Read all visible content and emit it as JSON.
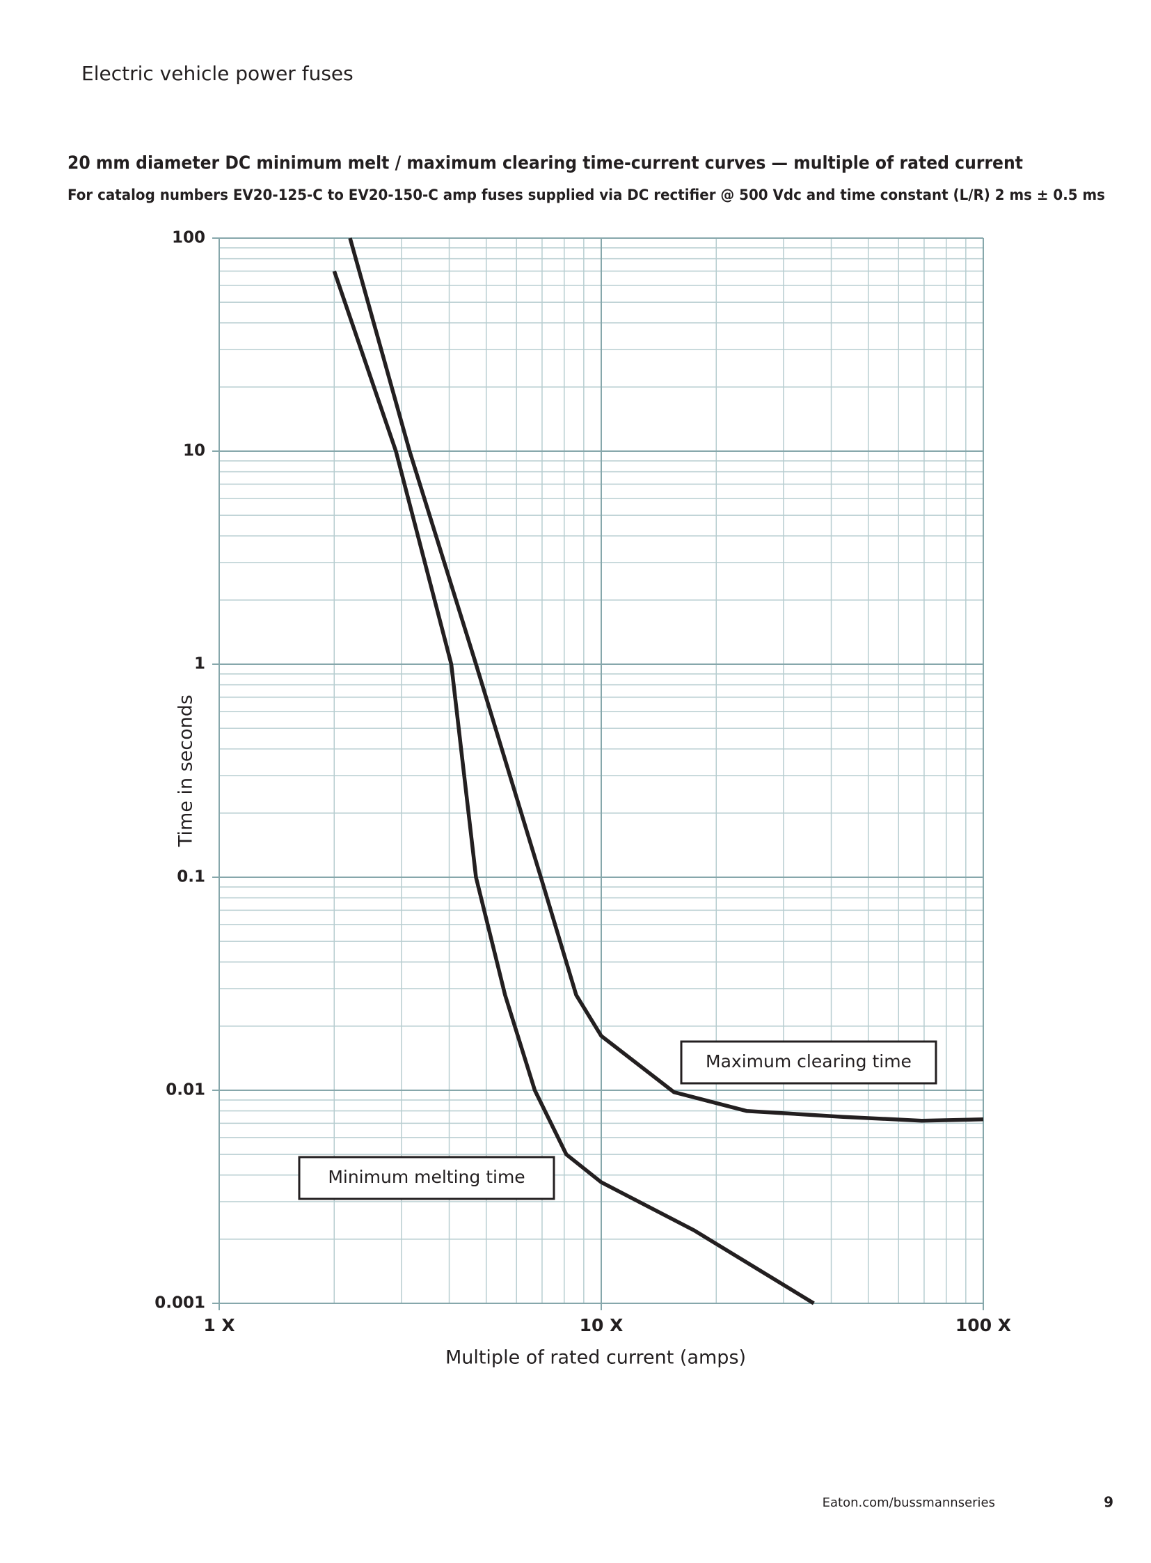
{
  "header": {
    "title": "Electric vehicle power fuses"
  },
  "chart_data": {
    "type": "line",
    "title": "20 mm diameter DC minimum melt / maximum clearing time-current curves — multiple of rated current",
    "subtitle": "For catalog numbers EV20-125-C to EV20-150-C amp fuses supplied via DC rectifier @ 500 Vdc and time constant (L/R) 2 ms ± 0.5 ms",
    "x_label": "Multiple of rated current (amps)",
    "y_label": "Time in seconds",
    "x_log": true,
    "y_log": true,
    "grid": true,
    "minor_grid": true,
    "xlim": [
      1,
      100
    ],
    "ylim": [
      0.001,
      100
    ],
    "xticks": [
      {
        "value": 1,
        "label": "1 X"
      },
      {
        "value": 10,
        "label": "10 X"
      },
      {
        "value": 100,
        "label": "100 X"
      }
    ],
    "yticks": [
      0.001,
      0.01,
      0.1,
      1,
      10,
      100
    ],
    "series": [
      {
        "name": "Minimum melting time",
        "color": "#231f20",
        "x": [
          2.0,
          2.9,
          4.05,
          4.7,
          5.6,
          6.7,
          8.1,
          10,
          17.5,
          36
        ],
        "values": [
          70,
          10,
          1,
          0.1,
          0.028,
          0.01,
          0.005,
          0.0037,
          0.0022,
          0.001
        ]
      },
      {
        "name": "Maximum clearing time",
        "color": "#231f20",
        "x": [
          2.2,
          3.15,
          4.7,
          6.95,
          8.6,
          10,
          15.5,
          24,
          43,
          69,
          100
        ],
        "values": [
          100,
          10,
          1,
          0.1,
          0.028,
          0.018,
          0.0098,
          0.008,
          0.0075,
          0.0072,
          0.0073
        ]
      }
    ]
  },
  "footer": {
    "url": "Eaton.com/bussmannseries",
    "page": "9"
  }
}
